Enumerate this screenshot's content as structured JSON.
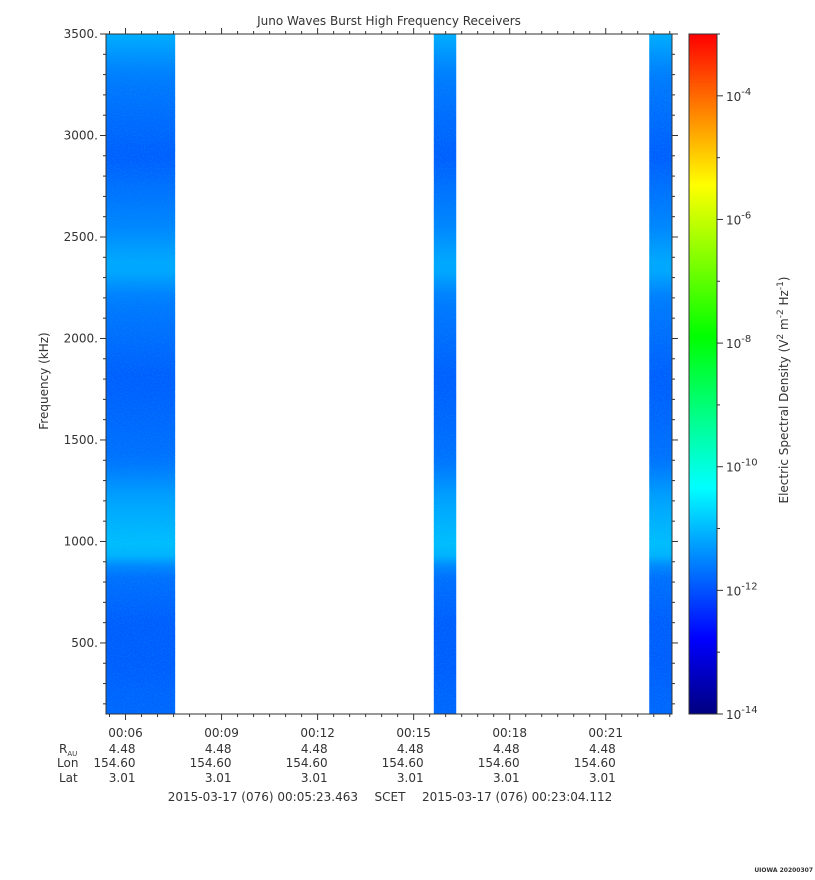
{
  "chart_data": {
    "type": "heatmap",
    "title": "Juno Waves Burst High Frequency Receivers",
    "ylabel": "Frequency (kHz)",
    "colorbar_label": "Electric Spectral Density (V^2 m^-2 Hz^-1)",
    "colorbar_label_parts": [
      "Electric Spectral Density (V",
      "2",
      " m",
      "-2",
      " Hz",
      "-1",
      ")"
    ],
    "ylim": [
      150,
      3500
    ],
    "y_ticks": [
      500,
      1000,
      1500,
      2000,
      2500,
      3000,
      3500
    ],
    "y_tick_labels": [
      "500.",
      "1000.",
      "1500.",
      "2000.",
      "2500.",
      "3000.",
      "3500."
    ],
    "x_range_minutes": [
      5.39,
      23.07
    ],
    "x_ticks_minutes": [
      6,
      9,
      12,
      15,
      18,
      21
    ],
    "x_tick_labels": [
      "00:06",
      "00:09",
      "00:12",
      "00:15",
      "00:18",
      "00:21"
    ],
    "color_scale": {
      "type": "log",
      "min_exp": -14,
      "max_exp": -3,
      "tick_exponents": [
        -14,
        -12,
        -10,
        -8,
        -6,
        -4
      ],
      "tick_base": "10",
      "colors": [
        "#000080",
        "#0000ff",
        "#0080ff",
        "#00ffff",
        "#00ff80",
        "#00ff00",
        "#80ff00",
        "#ffff00",
        "#ff8000",
        "#ff0000"
      ]
    },
    "data_segments": [
      {
        "start_min": 5.39,
        "end_min": 7.55
      },
      {
        "start_min": 15.63,
        "end_min": 16.33
      },
      {
        "start_min": 22.36,
        "end_min": 23.07
      }
    ],
    "spectrum_profile": [
      {
        "freq_khz": 150,
        "log10_density": -11.8
      },
      {
        "freq_khz": 400,
        "log10_density": -11.9
      },
      {
        "freq_khz": 600,
        "log10_density": -11.9
      },
      {
        "freq_khz": 850,
        "log10_density": -11.7
      },
      {
        "freq_khz": 950,
        "log10_density": -10.9
      },
      {
        "freq_khz": 1050,
        "log10_density": -11.0
      },
      {
        "freq_khz": 1200,
        "log10_density": -11.2
      },
      {
        "freq_khz": 1400,
        "log10_density": -11.7
      },
      {
        "freq_khz": 1800,
        "log10_density": -11.9
      },
      {
        "freq_khz": 2200,
        "log10_density": -11.6
      },
      {
        "freq_khz": 2350,
        "log10_density": -11.1
      },
      {
        "freq_khz": 2550,
        "log10_density": -11.5
      },
      {
        "freq_khz": 2900,
        "log10_density": -11.9
      },
      {
        "freq_khz": 3300,
        "log10_density": -11.6
      },
      {
        "freq_khz": 3500,
        "log10_density": -11.1
      }
    ],
    "ephemeris_labels": {
      "r_main": "R",
      "r_sub": "AU",
      "lon": "Lon",
      "lat": "Lat"
    },
    "ephemeris": {
      "r_au": [
        "4.48",
        "4.48",
        "4.48",
        "4.48",
        "4.48",
        "4.48"
      ],
      "lon": [
        "154.60",
        "154.60",
        "154.60",
        "154.60",
        "154.60",
        "154.60"
      ],
      "lat": [
        "3.01",
        "3.01",
        "3.01",
        "3.01",
        "3.01",
        "3.01"
      ]
    },
    "time_span": {
      "start": "2015-03-17 (076) 00:05:23.463",
      "frame": "SCET",
      "end": "2015-03-17 (076) 00:23:04.112"
    },
    "stamp": "UIOWA 20200307"
  }
}
